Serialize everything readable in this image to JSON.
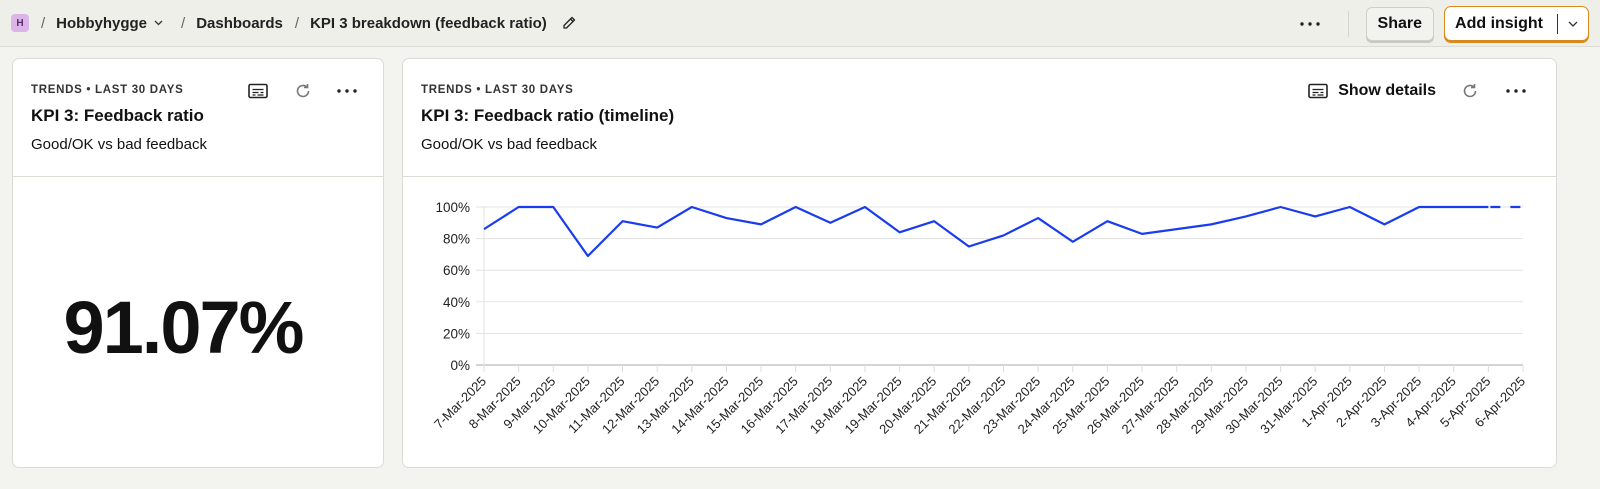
{
  "topbar": {
    "org_initial": "H",
    "breadcrumbs": [
      "Hobbyhygge",
      "Dashboards",
      "KPI 3 breakdown (feedback ratio)"
    ],
    "share_label": "Share",
    "add_insight_label": "Add insight"
  },
  "cards": [
    {
      "kicker": "TRENDS • LAST 30 DAYS",
      "title": "KPI 3: Feedback ratio",
      "subtitle": "Good/OK vs bad feedback",
      "value": "91.07%"
    },
    {
      "kicker": "TRENDS • LAST 30 DAYS",
      "title": "KPI 3: Feedback ratio (timeline)",
      "subtitle": "Good/OK vs bad feedback",
      "show_details_label": "Show details"
    }
  ],
  "colors": {
    "line": "#1a3cf0",
    "accent": "#d98a1e",
    "org_badge": "#dcb4e8"
  },
  "chart_data": {
    "type": "line",
    "title": "KPI 3: Feedback ratio (timeline)",
    "xlabel": "",
    "ylabel": "",
    "ylim": [
      0,
      100
    ],
    "yticks": [
      "0%",
      "20%",
      "40%",
      "60%",
      "80%",
      "100%"
    ],
    "grid": true,
    "categories": [
      "7-Mar-2025",
      "8-Mar-2025",
      "9-Mar-2025",
      "10-Mar-2025",
      "11-Mar-2025",
      "12-Mar-2025",
      "13-Mar-2025",
      "14-Mar-2025",
      "15-Mar-2025",
      "16-Mar-2025",
      "17-Mar-2025",
      "18-Mar-2025",
      "19-Mar-2025",
      "20-Mar-2025",
      "21-Mar-2025",
      "22-Mar-2025",
      "23-Mar-2025",
      "24-Mar-2025",
      "25-Mar-2025",
      "26-Mar-2025",
      "27-Mar-2025",
      "28-Mar-2025",
      "29-Mar-2025",
      "30-Mar-2025",
      "31-Mar-2025",
      "1-Apr-2025",
      "2-Apr-2025",
      "3-Apr-2025",
      "4-Apr-2025",
      "5-Apr-2025",
      "6-Apr-2025"
    ],
    "series": [
      {
        "name": "Feedback ratio",
        "values": [
          86,
          100,
          100,
          69,
          91,
          87,
          100,
          93,
          89,
          100,
          90,
          100,
          84,
          91,
          75,
          82,
          93,
          78,
          91,
          83,
          86,
          89,
          94,
          100,
          94,
          100,
          89,
          100,
          100,
          100,
          100
        ]
      }
    ],
    "notes": "Last segment (5-Apr to 6-Apr) is dashed (incomplete period)"
  }
}
